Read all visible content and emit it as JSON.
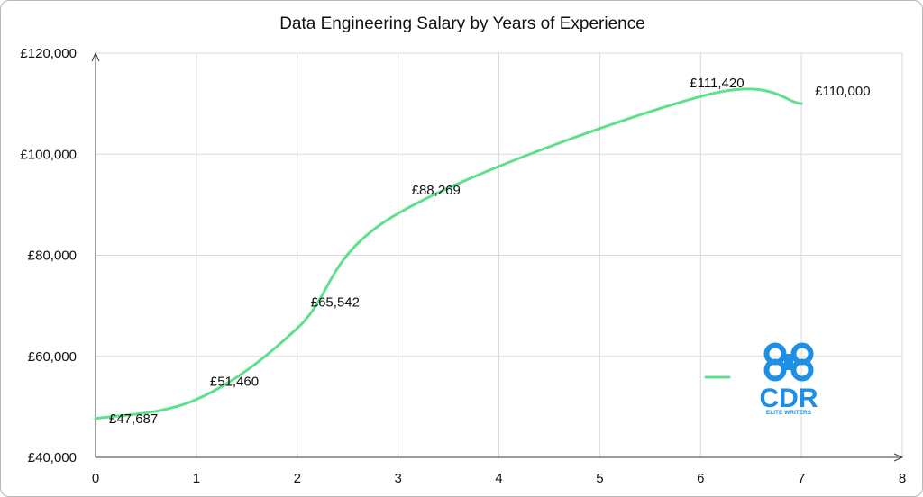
{
  "chart_data": {
    "type": "line",
    "title": "Data Engineering Salary by Years of Experience",
    "xlabel": "",
    "ylabel": "",
    "xlim": [
      0,
      8
    ],
    "ylim": [
      40000,
      120000
    ],
    "x_ticks": [
      "0",
      "1",
      "2",
      "3",
      "4",
      "5",
      "6",
      "7",
      "8"
    ],
    "y_ticks": [
      "£40,000",
      "£60,000",
      "£80,000",
      "£100,000",
      "£120,000"
    ],
    "x_tick_values": [
      0,
      1,
      2,
      3,
      4,
      5,
      6,
      7,
      8
    ],
    "y_tick_values": [
      40000,
      60000,
      80000,
      100000,
      120000
    ],
    "grid": true,
    "series": [
      {
        "x": [
          0,
          1,
          2,
          3,
          6,
          7
        ],
        "values": [
          47687,
          51460,
          65542,
          88269,
          111420,
          110000
        ],
        "labels": [
          "£47,687",
          "£51,460",
          "£65,542",
          "£88,269",
          "£111,420",
          "£110,000"
        ],
        "color": "#5ee08c"
      }
    ],
    "legend": {
      "placement": "bottom-right",
      "entries": [
        ""
      ]
    }
  },
  "logo": {
    "icon": "cdr-elite-writers-logo",
    "text": "CDR",
    "subtext": "ELITE WRITERS",
    "color": "#1f8fe5"
  }
}
